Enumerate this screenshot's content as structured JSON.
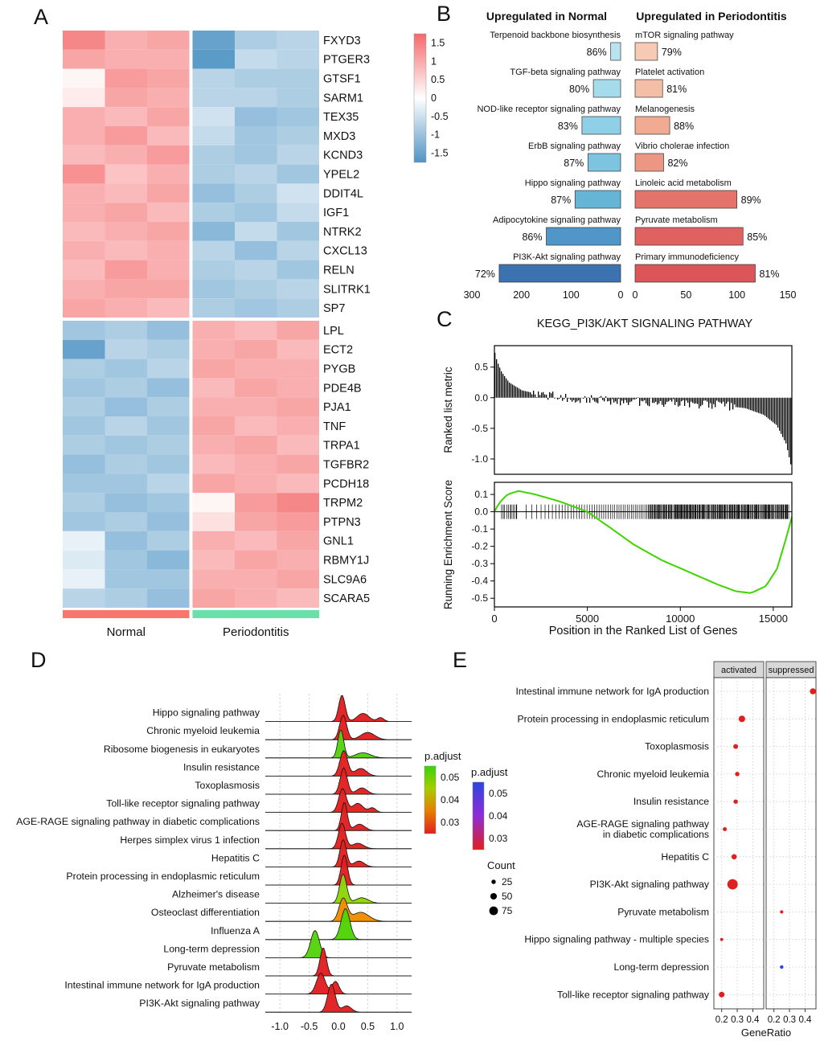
{
  "figure": {
    "panel_labels": [
      "A",
      "B",
      "C",
      "D",
      "E"
    ]
  },
  "colors": {
    "highlight": "#e8130b",
    "heat_red": "#f4696b",
    "heat_blue": "#4f94c4",
    "normal_annot": "#f8766d",
    "perio_annot": "#69dfa9"
  },
  "chart_data": [
    {
      "id": "A",
      "type": "heatmap",
      "panel_label": "A",
      "genes": [
        "FXYD3",
        "PTGER3",
        "GTSF1",
        "SARM1",
        "TEX35",
        "MXD3",
        "KCND3",
        "YPEL2",
        "DDIT4L",
        "IGF1",
        "NTRK2",
        "CXCL13",
        "RELN",
        "SLITRK1",
        "SP7",
        "LPL",
        "ECT2",
        "PYGB",
        "PDE4B",
        "PJA1",
        "TNF",
        "TRPA1",
        "TGFBR2",
        "PCDH18",
        "TRPM2",
        "PTPN3",
        "GNL1",
        "RBMY1J",
        "SLC9A6",
        "SCARA5"
      ],
      "highlight_gene": "IGF1",
      "groups": [
        {
          "label": "Normal",
          "color": "#f8766d",
          "n_cols": 3
        },
        {
          "label": "Periodontitis",
          "color": "#69dfa9",
          "n_cols": 3
        }
      ],
      "scale": {
        "limit": 1.5,
        "high": "#f4696b",
        "low": "#4f94c4",
        "ticks": [
          "1.5",
          "1",
          "0.5",
          "0",
          "-0.5",
          "-1",
          "-1.5"
        ]
      },
      "matrix": [
        [
          1.2,
          0.8,
          0.9,
          -1.3,
          -0.7,
          -0.6
        ],
        [
          0.9,
          0.8,
          0.8,
          -1.4,
          -0.5,
          -0.6
        ],
        [
          0.1,
          1.0,
          0.9,
          -0.6,
          -0.7,
          -0.7
        ],
        [
          0.2,
          0.9,
          0.8,
          -0.6,
          -0.6,
          -0.7
        ],
        [
          0.8,
          0.7,
          0.9,
          -0.4,
          -0.9,
          -0.8
        ],
        [
          0.8,
          1.0,
          0.7,
          -0.5,
          -0.8,
          -0.7
        ],
        [
          0.7,
          0.8,
          1.0,
          -0.7,
          -0.8,
          -0.6
        ],
        [
          1.1,
          0.6,
          0.8,
          -0.7,
          -0.6,
          -0.8
        ],
        [
          0.8,
          0.7,
          0.9,
          -0.9,
          -0.7,
          -0.4
        ],
        [
          0.8,
          0.9,
          0.7,
          -0.7,
          -0.8,
          -0.5
        ],
        [
          0.7,
          0.8,
          0.9,
          -1.0,
          -0.5,
          -0.8
        ],
        [
          0.8,
          0.7,
          0.8,
          -0.6,
          -0.9,
          -0.6
        ],
        [
          0.7,
          1.0,
          0.8,
          -0.7,
          -0.6,
          -0.8
        ],
        [
          0.8,
          0.9,
          0.9,
          -0.8,
          -0.7,
          -0.6
        ],
        [
          0.9,
          0.8,
          0.7,
          -0.7,
          -0.8,
          -0.7
        ],
        [
          -0.8,
          -0.7,
          -0.9,
          0.8,
          0.7,
          0.9
        ],
        [
          -1.3,
          -0.6,
          -0.7,
          0.8,
          0.9,
          0.7
        ],
        [
          -0.7,
          -0.8,
          -0.6,
          0.9,
          0.8,
          0.8
        ],
        [
          -0.8,
          -0.7,
          -0.9,
          0.7,
          0.9,
          0.8
        ],
        [
          -0.7,
          -0.9,
          -0.7,
          0.8,
          0.8,
          0.9
        ],
        [
          -0.8,
          -0.6,
          -0.8,
          0.9,
          0.7,
          0.8
        ],
        [
          -0.7,
          -0.8,
          -0.7,
          0.8,
          0.9,
          0.7
        ],
        [
          -0.9,
          -0.7,
          -0.8,
          0.7,
          0.8,
          0.9
        ],
        [
          -0.8,
          -0.8,
          -0.6,
          0.9,
          0.8,
          0.7
        ],
        [
          -0.7,
          -0.9,
          -0.8,
          0.1,
          1.0,
          1.2
        ],
        [
          -0.8,
          -0.7,
          -0.9,
          0.3,
          0.9,
          1.0
        ],
        [
          -0.2,
          -0.9,
          -0.7,
          0.8,
          0.7,
          0.9
        ],
        [
          -0.3,
          -0.8,
          -1.0,
          0.7,
          0.9,
          0.8
        ],
        [
          -0.2,
          -0.8,
          -0.8,
          0.8,
          0.8,
          0.9
        ],
        [
          -0.6,
          -0.7,
          -0.9,
          0.9,
          0.8,
          0.7
        ]
      ]
    },
    {
      "id": "B",
      "type": "bar",
      "panel_label": "B",
      "highlight": "PI3K-Akt signaling pathway",
      "left": {
        "title": "Upregulated in Normal",
        "axis_max": 300,
        "axis_ticks": [
          300,
          200,
          100,
          0
        ],
        "items": [
          {
            "name": "Terpenoid backbone biosynthesis",
            "percent": "86%",
            "value": 20,
            "color": "#b9e3ef"
          },
          {
            "name": "TGF-beta signaling pathway",
            "percent": "80%",
            "value": 55,
            "color": "#a6dbec"
          },
          {
            "name": "NOD-like receptor signaling pathway",
            "percent": "83%",
            "value": 78,
            "color": "#90d0e6"
          },
          {
            "name": "ErbB signaling pathway",
            "percent": "87%",
            "value": 66,
            "color": "#7cc4df"
          },
          {
            "name": "Hippo signaling pathway",
            "percent": "87%",
            "value": 92,
            "color": "#66b4d6"
          },
          {
            "name": "Adipocytokine signaling pathway",
            "percent": "86%",
            "value": 150,
            "color": "#5096c8"
          },
          {
            "name": "PI3K-Akt signaling pathway",
            "percent": "72%",
            "value": 245,
            "color": "#3c72b0"
          }
        ]
      },
      "right": {
        "title": "Upregulated in Periodontitis",
        "axis_max": 150,
        "axis_ticks": [
          0,
          50,
          100,
          150
        ],
        "items": [
          {
            "name": "mTOR signaling pathway",
            "percent": "79%",
            "value": 22,
            "color": "#f6cab4"
          },
          {
            "name": "Platelet activation",
            "percent": "81%",
            "value": 27,
            "color": "#f4bda5"
          },
          {
            "name": "Melanogenesis",
            "percent": "88%",
            "value": 34,
            "color": "#f0ab92"
          },
          {
            "name": "Vibrio cholerae infection",
            "percent": "82%",
            "value": 28,
            "color": "#ec9783"
          },
          {
            "name": "Linoleic acid metabolism",
            "percent": "89%",
            "value": 100,
            "color": "#e4736c"
          },
          {
            "name": "Pyruvate metabolism",
            "percent": "85%",
            "value": 106,
            "color": "#e06260"
          },
          {
            "name": "Primary immunodeficiency",
            "percent": "81%",
            "value": 118,
            "color": "#dc5558"
          }
        ]
      }
    },
    {
      "id": "C",
      "type": "gsea",
      "panel_label": "C",
      "title": "KEGG_PI3K/AKT SIGNALING PATHWAY",
      "xlabel": "Position in the Ranked List of Genes",
      "xticks": [
        0,
        5000,
        10000,
        15000
      ],
      "xmax": 16000,
      "top": {
        "ylabel": "Ranked list metric",
        "ytick_labels": [
          "0.5",
          "0.0",
          "-0.5",
          "-1.0"
        ],
        "curve": [
          [
            0,
            0.78
          ],
          [
            150,
            0.6
          ],
          [
            400,
            0.42
          ],
          [
            800,
            0.25
          ],
          [
            1500,
            0.12
          ],
          [
            2500,
            0.05
          ],
          [
            4000,
            0.0
          ],
          [
            6000,
            -0.04
          ],
          [
            9000,
            -0.08
          ],
          [
            12000,
            -0.12
          ],
          [
            13500,
            -0.17
          ],
          [
            14500,
            -0.28
          ],
          [
            15200,
            -0.45
          ],
          [
            15700,
            -0.75
          ],
          [
            16000,
            -1.15
          ]
        ]
      },
      "bottom": {
        "ylabel": "Running Enrichment Score",
        "ytick_labels": [
          "0.1",
          "0.0",
          "-0.1",
          "-0.2",
          "-0.3",
          "-0.4",
          "-0.5"
        ],
        "color": "#3fd400",
        "curve": [
          [
            0,
            0.0
          ],
          [
            250,
            0.05
          ],
          [
            700,
            0.1
          ],
          [
            1300,
            0.12
          ],
          [
            2200,
            0.1
          ],
          [
            3500,
            0.06
          ],
          [
            5000,
            0.0
          ],
          [
            6200,
            -0.09
          ],
          [
            7500,
            -0.19
          ],
          [
            9000,
            -0.28
          ],
          [
            10500,
            -0.35
          ],
          [
            12000,
            -0.42
          ],
          [
            13000,
            -0.46
          ],
          [
            13800,
            -0.47
          ],
          [
            14600,
            -0.43
          ],
          [
            15200,
            -0.33
          ],
          [
            15700,
            -0.15
          ],
          [
            16000,
            -0.03
          ]
        ]
      }
    },
    {
      "id": "D",
      "type": "ridge",
      "panel_label": "D",
      "highlight": "PI3K-Akt signaling pathway",
      "xtick_labels": [
        "-1.0",
        "-0.5",
        "0.0",
        "0.5",
        "1.0"
      ],
      "legend": {
        "title": "p.adjust",
        "labels": [
          "0.05",
          "0.04",
          "0.03"
        ],
        "gradient": [
          "#38d408",
          "#a8cc00",
          "#e87d00",
          "#e02020"
        ]
      },
      "items": [
        {
          "name": "Hippo signaling pathway",
          "color": "#e02020",
          "peaks": [
            [
              0.06,
              0.055,
              1.45
            ],
            [
              0.42,
              0.1,
              0.45
            ],
            [
              0.72,
              0.055,
              0.22
            ]
          ]
        },
        {
          "name": "Chronic myeloid leukemia",
          "color": "#e02020",
          "peaks": [
            [
              0.08,
              0.06,
              1.35
            ],
            [
              0.5,
              0.12,
              0.4
            ]
          ]
        },
        {
          "name": "Ribosome biogenesis in eukaryotes",
          "color": "#55d30c",
          "peaks": [
            [
              0.04,
              0.05,
              1.55
            ],
            [
              0.42,
              0.13,
              0.28
            ]
          ]
        },
        {
          "name": "Insulin resistance",
          "color": "#e02020",
          "peaks": [
            [
              0.09,
              0.065,
              1.4
            ],
            [
              0.38,
              0.1,
              0.42
            ]
          ]
        },
        {
          "name": "Toxoplasmosis",
          "color": "#e02020",
          "peaks": [
            [
              0.09,
              0.06,
              1.45
            ],
            [
              0.4,
              0.09,
              0.35
            ]
          ]
        },
        {
          "name": "Toll-like receptor signaling pathway",
          "color": "#e02020",
          "peaks": [
            [
              0.07,
              0.065,
              1.3
            ],
            [
              0.33,
              0.09,
              0.5
            ],
            [
              0.58,
              0.06,
              0.25
            ]
          ]
        },
        {
          "name": "AGE-RAGE signaling pathway in diabetic complications",
          "color": "#e02020",
          "peaks": [
            [
              0.1,
              0.05,
              1.55
            ],
            [
              0.36,
              0.09,
              0.35
            ]
          ]
        },
        {
          "name": "Herpes simplex virus 1 infection",
          "color": "#e02020",
          "peaks": [
            [
              0.06,
              0.06,
              1.4
            ],
            [
              0.33,
              0.1,
              0.3
            ]
          ]
        },
        {
          "name": "Hepatitis C",
          "color": "#e02020",
          "peaks": [
            [
              0.08,
              0.055,
              1.5
            ],
            [
              0.35,
              0.09,
              0.32
            ]
          ]
        },
        {
          "name": "Protein processing in endoplasmic reticulum",
          "color": "#e02020",
          "peaks": [
            [
              0.1,
              0.055,
              1.65
            ]
          ]
        },
        {
          "name": "Alzheimer's disease",
          "color": "#8ed40a",
          "peaks": [
            [
              0.08,
              0.06,
              1.6
            ],
            [
              0.4,
              0.11,
              0.3
            ]
          ]
        },
        {
          "name": "Osteoclast differentiation",
          "color": "#f08b00",
          "peaks": [
            [
              0.08,
              0.07,
              1.25
            ],
            [
              0.38,
              0.14,
              0.5
            ]
          ]
        },
        {
          "name": "Influenza A",
          "color": "#4ed405",
          "peaks": [
            [
              0.12,
              0.075,
              1.7
            ]
          ]
        },
        {
          "name": "Long-term depression",
          "color": "#55d30c",
          "peaks": [
            [
              -0.4,
              0.075,
              1.5
            ]
          ]
        },
        {
          "name": "Pyruvate metabolism",
          "color": "#e02020",
          "peaks": [
            [
              -0.26,
              0.055,
              1.55
            ]
          ]
        },
        {
          "name": "Intestinal immune network for IgA production",
          "color": "#e02020",
          "peaks": [
            [
              -0.3,
              0.075,
              1.15
            ],
            [
              -0.05,
              0.06,
              0.7
            ]
          ]
        },
        {
          "name": "PI3K-Akt signaling pathway",
          "color": "#e02020",
          "peaks": [
            [
              -0.12,
              0.065,
              1.55
            ],
            [
              0.14,
              0.08,
              0.35
            ]
          ]
        }
      ]
    },
    {
      "id": "E",
      "type": "dotplot",
      "panel_label": "E",
      "highlight": "PI3K-Akt signaling pathway",
      "facets": [
        "activated",
        "suppressed"
      ],
      "xlabel": "GeneRatio",
      "xtick_labels": [
        "0.2",
        "0.3",
        "0.4"
      ],
      "categories": [
        "Intestinal immune network for IgA production",
        "Protein processing in endoplasmic reticulum",
        "Toxoplasmosis",
        "Chronic myeloid leukemia",
        "Insulin resistance",
        "AGE-RAGE signaling pathway\nin diabetic complications",
        "Hepatitis C",
        "PI3K-Akt signaling pathway",
        "Pyruvate metabolism",
        "Hippo signaling pathway - multiple species",
        "Long-term depression",
        "Toll-like receptor signaling pathway"
      ],
      "points": [
        {
          "facet": "activated",
          "row": 1,
          "category": "Protein processing in endoplasmic reticulum",
          "gene_ratio": 0.33,
          "count": 50,
          "color": "#e02020"
        },
        {
          "facet": "activated",
          "row": 2,
          "category": "Toxoplasmosis",
          "gene_ratio": 0.29,
          "count": 30,
          "color": "#e02020"
        },
        {
          "facet": "activated",
          "row": 3,
          "category": "Chronic myeloid leukemia",
          "gene_ratio": 0.3,
          "count": 25,
          "color": "#e02020"
        },
        {
          "facet": "activated",
          "row": 4,
          "category": "Insulin resistance",
          "gene_ratio": 0.29,
          "count": 25,
          "color": "#e02020"
        },
        {
          "facet": "activated",
          "row": 5,
          "category": "AGE-RAGE signaling pathway in diabetic complications",
          "gene_ratio": 0.22,
          "count": 20,
          "color": "#e02020"
        },
        {
          "facet": "activated",
          "row": 6,
          "category": "Hepatitis C",
          "gene_ratio": 0.28,
          "count": 35,
          "color": "#e02020"
        },
        {
          "facet": "activated",
          "row": 7,
          "category": "PI3K-Akt signaling pathway",
          "gene_ratio": 0.27,
          "count": 95,
          "color": "#e02020"
        },
        {
          "facet": "activated",
          "row": 9,
          "category": "Hippo signaling pathway - multiple species",
          "gene_ratio": 0.2,
          "count": 10,
          "color": "#e02020"
        },
        {
          "facet": "activated",
          "row": 11,
          "category": "Toll-like receptor signaling pathway",
          "gene_ratio": 0.2,
          "count": 40,
          "color": "#e02020"
        },
        {
          "facet": "suppressed",
          "row": 0,
          "category": "Intestinal immune network for IgA production",
          "gene_ratio": 0.45,
          "count": 45,
          "color": "#e02020"
        },
        {
          "facet": "suppressed",
          "row": 8,
          "category": "Pyruvate metabolism",
          "gene_ratio": 0.25,
          "count": 12,
          "color": "#e02020"
        },
        {
          "facet": "suppressed",
          "row": 10,
          "category": "Long-term depression",
          "gene_ratio": 0.25,
          "count": 15,
          "color": "#2d45e0"
        }
      ],
      "legend_padjust": {
        "title": "p.adjust",
        "labels": [
          "0.05",
          "0.04",
          "0.03"
        ],
        "gradient": [
          "#2d45e0",
          "#8f2cd8",
          "#e01f1f"
        ]
      },
      "legend_count": {
        "title": "Count",
        "sizes": [
          25,
          50,
          75
        ]
      }
    }
  ]
}
